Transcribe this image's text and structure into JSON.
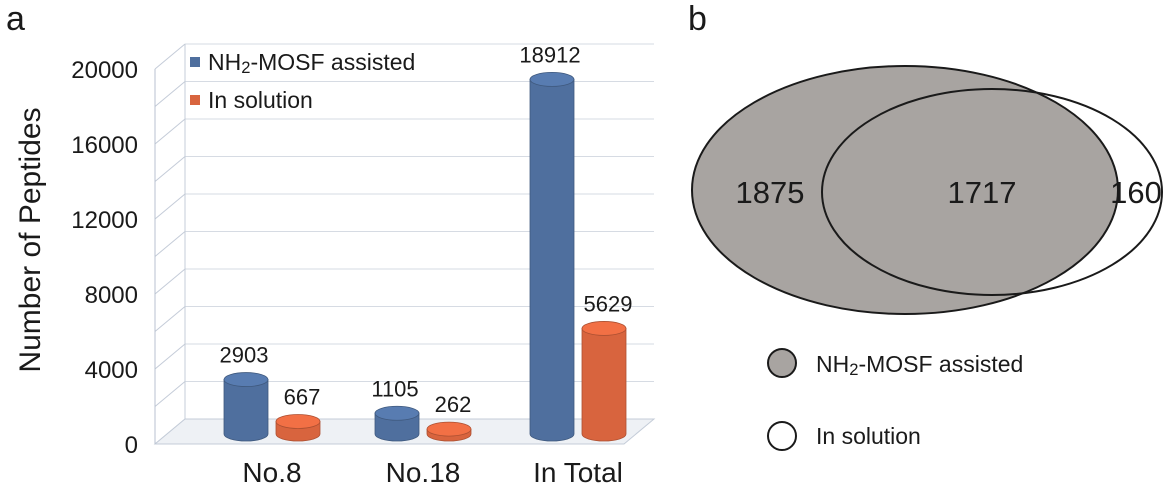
{
  "panels": {
    "a": "a",
    "b": "b"
  },
  "chart_data": [
    {
      "type": "bar",
      "title": "",
      "xlabel": "",
      "ylabel": "Number of Peptides",
      "ylim": [
        0,
        20000
      ],
      "yticks": [
        "0",
        "4000",
        "8000",
        "12000",
        "16000",
        "20000"
      ],
      "grid": true,
      "legend_position": "top-left",
      "categories": [
        "No.8",
        "No.18",
        "In Total"
      ],
      "series": [
        {
          "name": "NH2-MOSF assisted",
          "values": [
            2903,
            1105,
            18912
          ],
          "labels": [
            "2903",
            "1105",
            "18912"
          ],
          "color": "#4f6f9e"
        },
        {
          "name": "In solution",
          "values": [
            667,
            262,
            5629
          ],
          "labels": [
            "667",
            "262",
            "5629"
          ],
          "color": "#d8643e"
        }
      ]
    },
    {
      "type": "venn",
      "sets": [
        {
          "name": "NH2-MOSF assisted",
          "fill": "#a8a4a1"
        },
        {
          "name": "In solution",
          "fill": "#ffffff"
        }
      ],
      "regions": {
        "only_first": "1875",
        "overlap": "1717",
        "only_second": "160"
      }
    }
  ]
}
